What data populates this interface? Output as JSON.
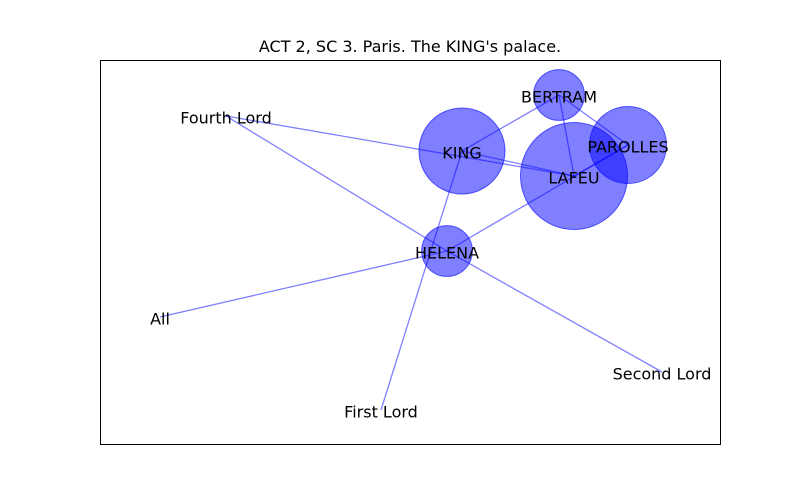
{
  "diagram": {
    "title": "ACT 2, SC 3. Paris. The KING's palace.",
    "colors": {
      "node": "#0000ff",
      "edge": "#0000ff"
    },
    "nodes": [
      {
        "id": "BERTRAM",
        "label": "BERTRAM",
        "weight": 0.35
      },
      {
        "id": "KING",
        "label": "KING",
        "weight": 1.0
      },
      {
        "id": "PAROLLES",
        "label": "PAROLLES",
        "weight": 0.8
      },
      {
        "id": "LAFEU",
        "label": "LAFEU",
        "weight": 1.55
      },
      {
        "id": "HELENA",
        "label": "HELENA",
        "weight": 0.35
      },
      {
        "id": "Fourth Lord",
        "label": "Fourth Lord",
        "weight": 0
      },
      {
        "id": "All",
        "label": "All",
        "weight": 0
      },
      {
        "id": "First Lord",
        "label": "First Lord",
        "weight": 0
      },
      {
        "id": "Second Lord",
        "label": "Second Lord",
        "weight": 0
      }
    ],
    "edges": [
      [
        "Fourth Lord",
        "HELENA"
      ],
      [
        "Fourth Lord",
        "LAFEU"
      ],
      [
        "HELENA",
        "All"
      ],
      [
        "HELENA",
        "Second Lord"
      ],
      [
        "HELENA",
        "PAROLLES"
      ],
      [
        "KING",
        "First Lord"
      ],
      [
        "KING",
        "LAFEU"
      ],
      [
        "KING",
        "BERTRAM"
      ],
      [
        "BERTRAM",
        "LAFEU"
      ],
      [
        "BERTRAM",
        "PAROLLES"
      ],
      [
        "LAFEU",
        "PAROLLES"
      ]
    ]
  }
}
